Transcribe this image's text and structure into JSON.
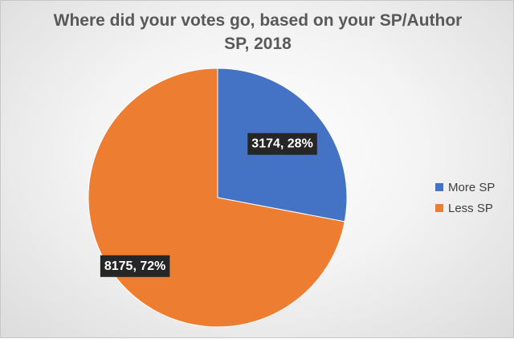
{
  "chart_data": {
    "type": "pie",
    "title": "Where did your votes go, based on your SP/Author SP, 2018",
    "title_lines": [
      "Where did your votes go, based on your SP/Author",
      "SP, 2018"
    ],
    "slices": [
      {
        "label": "More SP",
        "value": 3174,
        "percent": 28,
        "color": "#4472C4",
        "data_label": "3174, 28%"
      },
      {
        "label": "Less SP",
        "value": 8175,
        "percent": 72,
        "color": "#ED7D31",
        "data_label": "8175, 72%"
      }
    ],
    "legend_position": "right",
    "data_label_style": {
      "background": "#262626",
      "text_color": "#ffffff"
    }
  }
}
